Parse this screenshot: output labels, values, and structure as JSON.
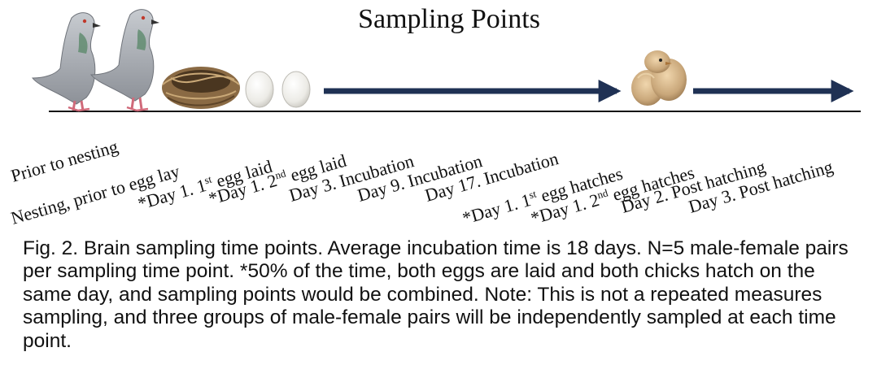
{
  "figure": {
    "title": "Sampling Points",
    "labels": [
      {
        "pre": "Prior to nesting",
        "sup": "",
        "post": ""
      },
      {
        "pre": "Nesting, prior to egg lay",
        "sup": "",
        "post": ""
      },
      {
        "pre": "*Day 1. 1",
        "sup": "st",
        "post": " egg laid"
      },
      {
        "pre": "*Day 1. 2",
        "sup": "nd",
        "post": " egg laid"
      },
      {
        "pre": "Day 3. Incubation",
        "sup": "",
        "post": ""
      },
      {
        "pre": "Day 9. Incubation",
        "sup": "",
        "post": ""
      },
      {
        "pre": "Day 17. Incubation",
        "sup": "",
        "post": ""
      },
      {
        "pre": "*Day 1. 1",
        "sup": "st",
        "post": " egg hatches"
      },
      {
        "pre": "*Day 1. 2",
        "sup": "nd",
        "post": " egg hatches"
      },
      {
        "pre": "Day 2. Post hatching",
        "sup": "",
        "post": ""
      },
      {
        "pre": "Day 3. Post hatching",
        "sup": "",
        "post": ""
      }
    ],
    "colors": {
      "arrow": "#1f3154",
      "baseline": "#111111",
      "pigeon_body": "#a9adb3",
      "nest": "#7a5c3a",
      "egg": "#f4f4f2",
      "chick": "#c9a77a"
    },
    "icons": [
      "pigeon-pair-icon",
      "nest-icon",
      "eggs-icon",
      "chicks-icon",
      "arrow-icon"
    ]
  },
  "caption": {
    "text": "Fig. 2. Brain sampling time points. Average incubation time is 18 days. N=5 male-female pairs per sampling time point. *50% of the time, both eggs are laid and both chicks hatch on the same day, and sampling points would be combined.  Note: This is not a repeated measures sampling, and three groups of male-female pairs will be independently sampled at each time point."
  }
}
